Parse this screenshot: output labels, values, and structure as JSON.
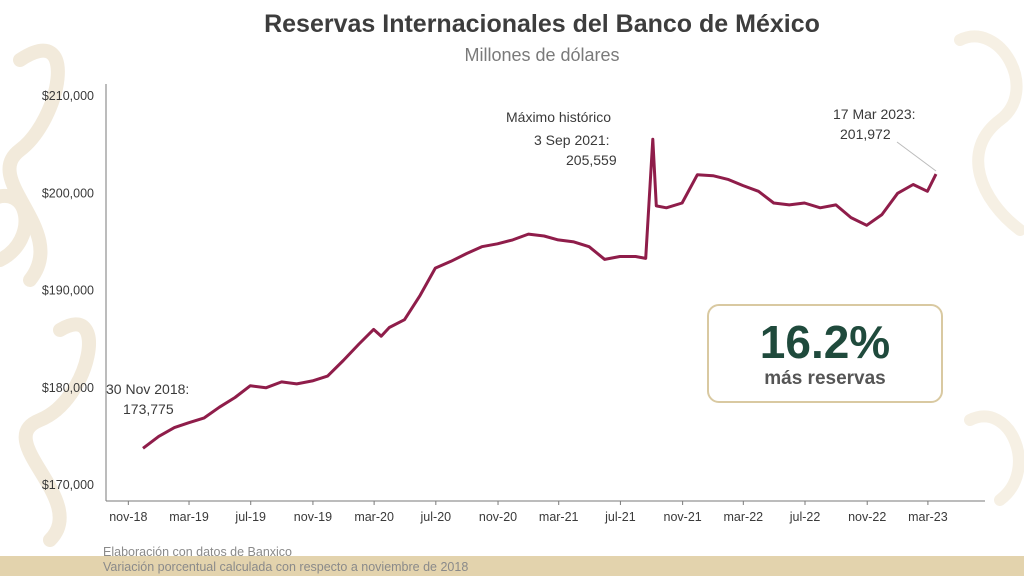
{
  "header": {
    "title": "Reservas Internacionales del Banco de México",
    "subtitle": "Millones de dólares"
  },
  "kpi": {
    "value": "16.2%",
    "label": "más reservas"
  },
  "footnotes": [
    "Elaboración con datos de Banxico",
    "Variación porcentual calculada con respecto a noviembre de 2018"
  ],
  "colors": {
    "line": "#8f1d4a",
    "kpi_text": "#1f4a3c",
    "box_border": "#d9c9a1",
    "band": "#e3d3ad"
  },
  "chart_data": {
    "type": "line",
    "title": "Reservas Internacionales del Banco de México",
    "subtitle": "Millones de dólares",
    "xlabel": "",
    "ylabel": "",
    "ylim": [
      170000,
      210000
    ],
    "y_ticks": [
      170000,
      180000,
      190000,
      200000,
      210000
    ],
    "y_tick_labels": [
      "$170,000",
      "$180,000",
      "$190,000",
      "$200,000",
      "$210,000"
    ],
    "x_ticks": [
      "2018-11",
      "2019-03",
      "2019-07",
      "2019-11",
      "2020-03",
      "2020-07",
      "2020-11",
      "2021-03",
      "2021-07",
      "2021-11",
      "2022-03",
      "2022-07",
      "2022-11",
      "2023-03"
    ],
    "x_tick_labels": [
      "nov-18",
      "mar-19",
      "jul-19",
      "nov-19",
      "mar-20",
      "jul-20",
      "nov-20",
      "mar-21",
      "jul-21",
      "nov-21",
      "mar-22",
      "jul-22",
      "nov-22",
      "mar-23"
    ],
    "grid": false,
    "series": [
      {
        "x": [
          "2018-11-30",
          "2018-12-31",
          "2019-01-31",
          "2019-02-28",
          "2019-03-31",
          "2019-04-30",
          "2019-05-31",
          "2019-06-30",
          "2019-07-31",
          "2019-08-31",
          "2019-09-30",
          "2019-10-31",
          "2019-11-30",
          "2019-12-31",
          "2020-01-31",
          "2020-02-29",
          "2020-03-15",
          "2020-03-31",
          "2020-04-30",
          "2020-05-31",
          "2020-06-30",
          "2020-07-31",
          "2020-08-31",
          "2020-09-30",
          "2020-10-31",
          "2020-11-30",
          "2020-12-31",
          "2021-01-31",
          "2021-02-28",
          "2021-03-31",
          "2021-04-30",
          "2021-05-31",
          "2021-06-30",
          "2021-07-31",
          "2021-08-20",
          "2021-09-03",
          "2021-09-10",
          "2021-09-30",
          "2021-10-31",
          "2021-11-30",
          "2021-12-31",
          "2022-01-31",
          "2022-02-28",
          "2022-03-31",
          "2022-04-30",
          "2022-05-31",
          "2022-06-30",
          "2022-07-31",
          "2022-08-31",
          "2022-09-30",
          "2022-10-31",
          "2022-11-30",
          "2022-12-31",
          "2023-01-31",
          "2023-02-28",
          "2023-03-17"
        ],
        "values": [
          173775,
          175000,
          175900,
          176400,
          176900,
          178000,
          179000,
          180200,
          180000,
          180600,
          180400,
          180700,
          181200,
          182800,
          184500,
          186000,
          185300,
          186200,
          187000,
          189500,
          192300,
          193000,
          193800,
          194500,
          194800,
          195200,
          195800,
          195600,
          195200,
          195000,
          194500,
          193200,
          193500,
          193500,
          193300,
          205559,
          198700,
          198500,
          199000,
          201900,
          201800,
          201400,
          200800,
          200200,
          199000,
          198800,
          199000,
          198500,
          198800,
          197500,
          196700,
          197800,
          200000,
          200900,
          200200,
          201972
        ]
      }
    ],
    "annotations": [
      {
        "text": "30 Nov 2018:",
        "value": "173,775"
      },
      {
        "text": "Máximo histórico",
        "text2": "3 Sep 2021:",
        "value": "205,559"
      },
      {
        "text": "17 Mar 2023:",
        "value": "201,972"
      }
    ]
  }
}
